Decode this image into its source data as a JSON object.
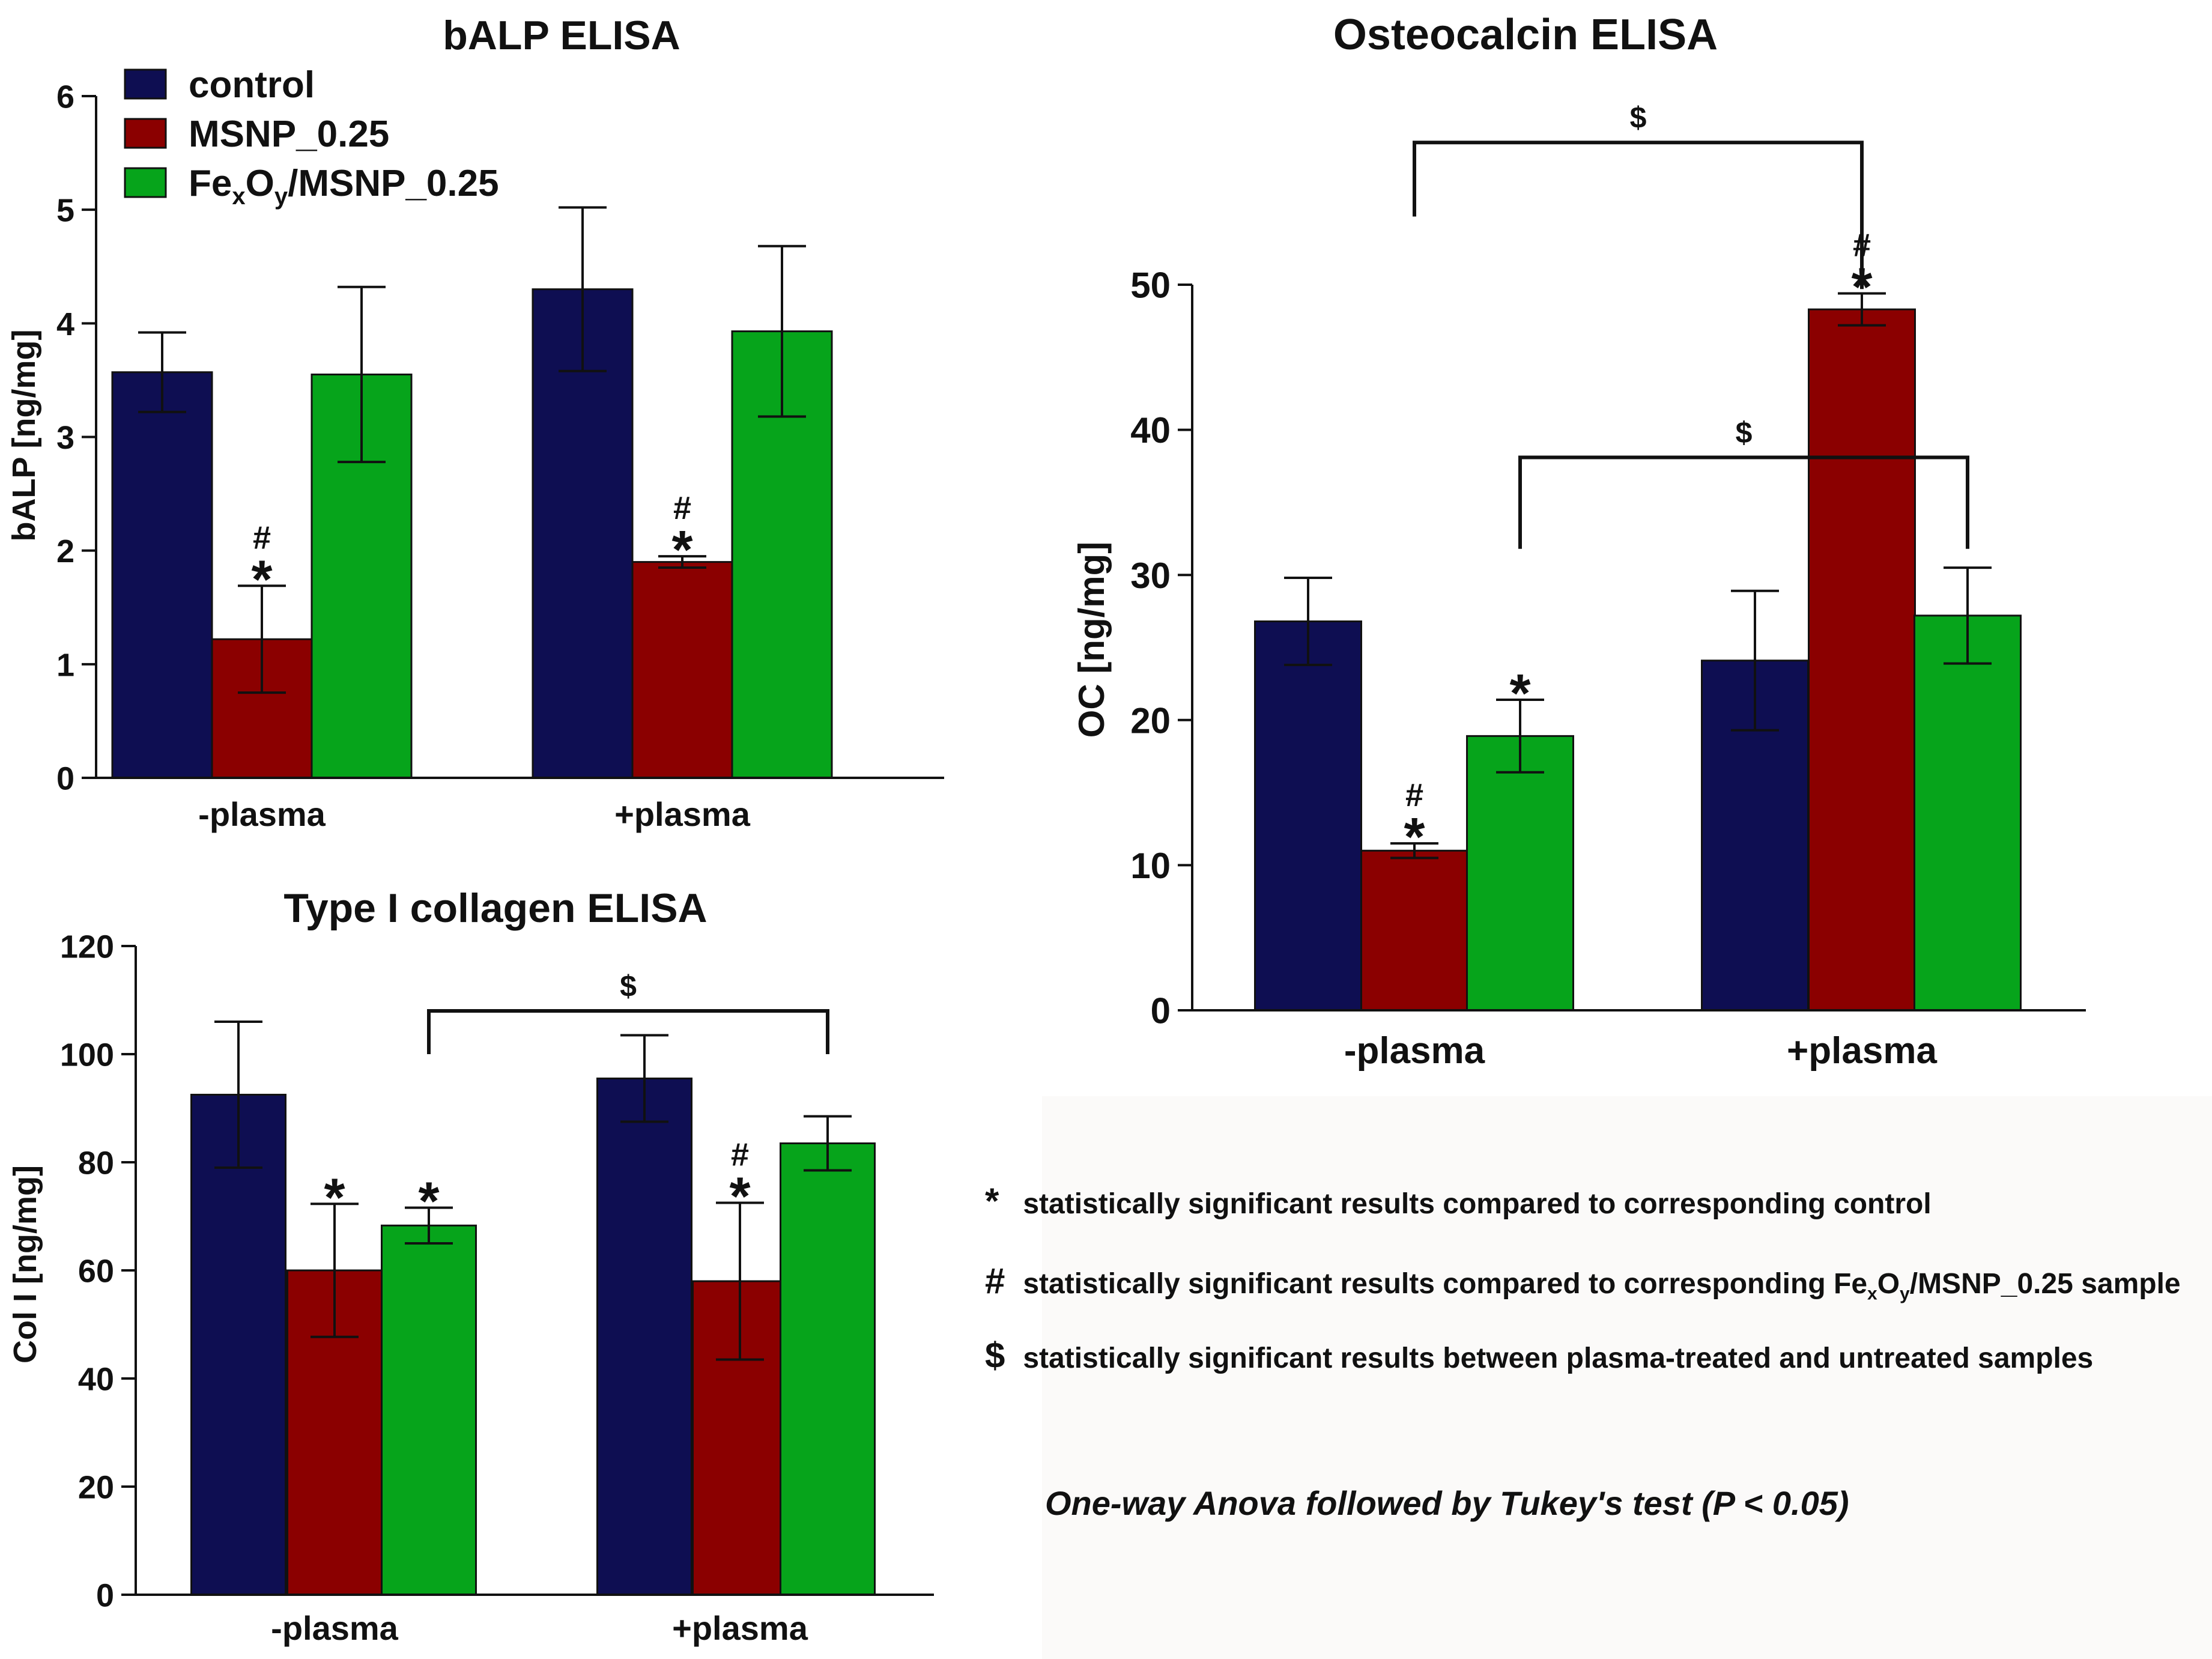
{
  "colors": {
    "control": "#0e0e52",
    "msnp": "#8b0000",
    "fexoy": "#06a41b",
    "axis": "#111111"
  },
  "legend": [
    {
      "label": "control",
      "color": "#0e0e52"
    },
    {
      "label": "MSNP_0.25",
      "color": "#8b0000"
    },
    {
      "label_parts": [
        "Fe",
        "x",
        "O",
        "y",
        "/MSNP_0.25"
      ],
      "color": "#06a41b"
    }
  ],
  "chart_data": [
    {
      "id": "balp",
      "type": "bar",
      "title": "bALP ELISA",
      "ylabel": "bALP [ng/mg]",
      "xlabel": "",
      "ylim": [
        0,
        6
      ],
      "yticks": [
        "0",
        "1",
        "2",
        "3",
        "4",
        "5",
        "6"
      ],
      "categories": [
        "-plasma",
        "+plasma"
      ],
      "series": [
        {
          "name": "control",
          "values": [
            3.57,
            4.3
          ],
          "errors": [
            0.35,
            0.72
          ],
          "marks": [
            "",
            ""
          ]
        },
        {
          "name": "MSNP_0.25",
          "values": [
            1.22,
            1.9
          ],
          "errors": [
            0.47,
            0.05
          ],
          "marks": [
            "#*",
            "#*"
          ]
        },
        {
          "name": "FexOy/MSNP_0.25",
          "values": [
            3.55,
            3.93
          ],
          "errors": [
            0.77,
            0.75
          ],
          "marks": [
            "",
            ""
          ]
        }
      ],
      "brackets": []
    },
    {
      "id": "col",
      "type": "bar",
      "title": "Type I collagen ELISA",
      "ylabel": "Col I [ng/mg]",
      "xlabel": "",
      "ylim": [
        0,
        120
      ],
      "yticks": [
        "0",
        "20",
        "40",
        "60",
        "80",
        "100",
        "120"
      ],
      "categories": [
        "-plasma",
        "+plasma"
      ],
      "series": [
        {
          "name": "control",
          "values": [
            92.5,
            95.5
          ],
          "errors": [
            13.5,
            8.0
          ],
          "marks": [
            "",
            ""
          ]
        },
        {
          "name": "MSNP_0.25",
          "values": [
            60.0,
            58.0
          ],
          "errors": [
            12.3,
            14.5
          ],
          "marks": [
            "*",
            "#*"
          ]
        },
        {
          "name": "FexOy/MSNP_0.25",
          "values": [
            68.3,
            83.5
          ],
          "errors": [
            3.3,
            5.0
          ],
          "marks": [
            "*",
            ""
          ]
        }
      ],
      "brackets": [
        {
          "from": [
            0,
            2
          ],
          "to": [
            1,
            2
          ],
          "label": "$",
          "y": 108,
          "drop": 100
        }
      ]
    },
    {
      "id": "oc",
      "type": "bar",
      "title": "Osteocalcin ELISA",
      "ylabel": "OC [ng/mg]",
      "xlabel": "",
      "ylim": [
        0,
        50
      ],
      "yticks": [
        "0",
        "10",
        "20",
        "30",
        "40",
        "50"
      ],
      "categories": [
        "-plasma",
        "+plasma"
      ],
      "series": [
        {
          "name": "control",
          "values": [
            26.8,
            24.1
          ],
          "errors": [
            3.0,
            4.8
          ],
          "marks": [
            "",
            ""
          ]
        },
        {
          "name": "MSNP_0.25",
          "values": [
            11.0,
            48.3
          ],
          "errors": [
            0.5,
            1.1
          ],
          "marks": [
            "#*",
            "#*"
          ]
        },
        {
          "name": "FexOy/MSNP_0.25",
          "values": [
            18.9,
            27.2
          ],
          "errors": [
            2.5,
            3.3
          ],
          "marks": [
            "*",
            ""
          ]
        }
      ],
      "brackets": [
        {
          "from": [
            0,
            1
          ],
          "to": [
            1,
            1
          ],
          "label": "$",
          "y": 59.8,
          "drop": 54.7
        },
        {
          "from": [
            0,
            2
          ],
          "to": [
            1,
            2
          ],
          "label": "$",
          "y": 38.1,
          "drop": 31.8
        }
      ]
    }
  ],
  "notes": {
    "star": {
      "symbol": "*",
      "text": "statistically significant results compared to corresponding control"
    },
    "hash": {
      "symbol": "#",
      "text_before": "statistically significant results compared to corresponding Fe",
      "sub1": "x",
      "mid": "O",
      "sub2": "y",
      "text_after": "/MSNP_0.25 sample"
    },
    "dollar": {
      "symbol": "$",
      "text": "statistically significant results between plasma-treated and untreated  samples"
    },
    "test": "One-way Anova followed by Tukey's test (P < 0.05)"
  }
}
